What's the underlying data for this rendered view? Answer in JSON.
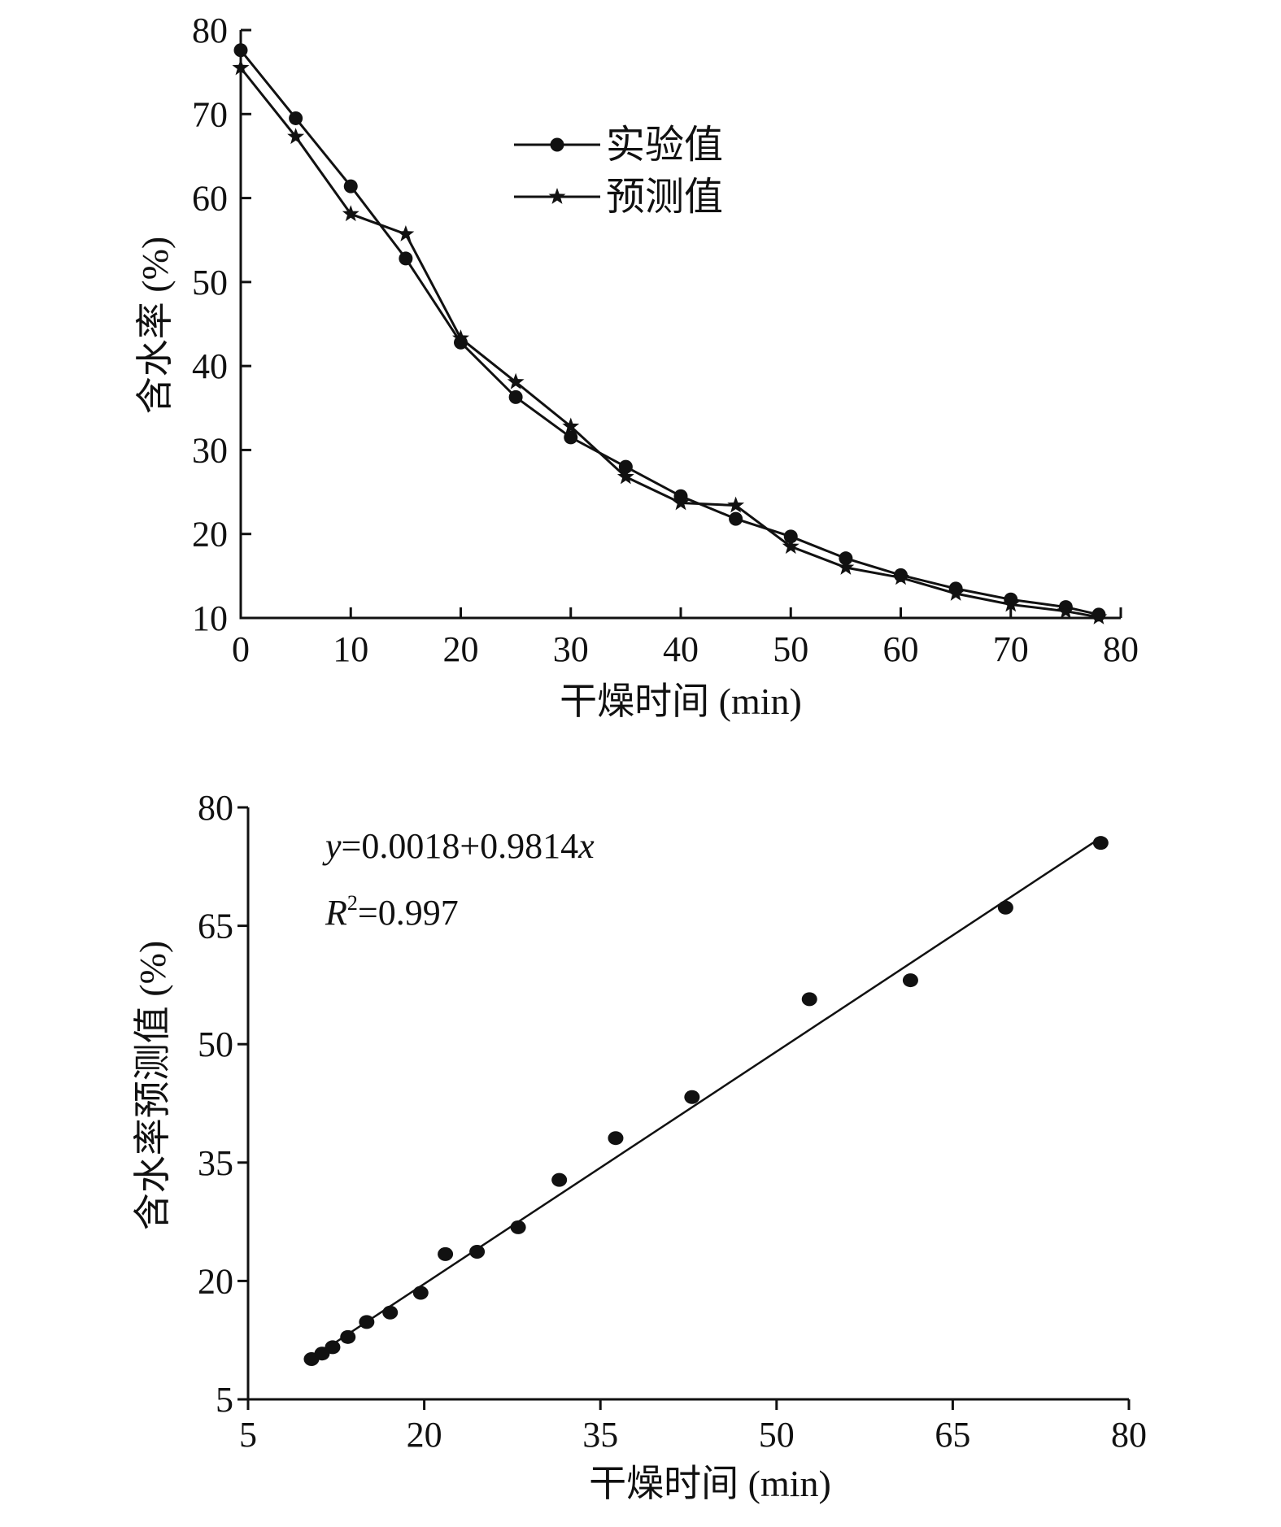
{
  "chart_data": [
    {
      "type": "line",
      "xlabel": "干燥时间 (min)",
      "ylabel": "含水率 (%)",
      "xlim": [
        0,
        80
      ],
      "ylim": [
        10,
        80
      ],
      "xticks": [
        "0",
        "10",
        "20",
        "30",
        "40",
        "50",
        "60",
        "70",
        "80"
      ],
      "yticks": [
        "10",
        "20",
        "30",
        "40",
        "50",
        "60",
        "70",
        "80"
      ],
      "legend_position": "top-center",
      "series": [
        {
          "name": "实验值",
          "marker": "circle",
          "x": [
            0,
            5,
            10,
            15,
            20,
            25,
            30,
            35,
            40,
            45,
            50,
            55,
            60,
            65,
            70,
            75,
            78
          ],
          "values": [
            77.6,
            69.5,
            61.4,
            52.8,
            42.8,
            36.3,
            31.5,
            28.0,
            24.5,
            21.8,
            19.7,
            17.1,
            15.1,
            13.5,
            12.2,
            11.3,
            10.4
          ]
        },
        {
          "name": "预测值",
          "marker": "star",
          "x": [
            0,
            5,
            10,
            15,
            20,
            25,
            30,
            35,
            40,
            45,
            50,
            55,
            60,
            65,
            70,
            75,
            78
          ],
          "values": [
            75.5,
            67.3,
            58.1,
            55.7,
            43.3,
            38.1,
            32.8,
            26.8,
            23.7,
            23.4,
            18.5,
            16.0,
            14.8,
            12.9,
            11.6,
            10.8,
            10.1
          ]
        }
      ]
    },
    {
      "type": "scatter",
      "xlabel": "干燥时间 (min)",
      "ylabel": "含水率预测值 (%)",
      "xlim": [
        5,
        80
      ],
      "ylim": [
        5,
        80
      ],
      "xticks": [
        "5",
        "20",
        "35",
        "50",
        "65",
        "80"
      ],
      "yticks": [
        "5",
        "20",
        "35",
        "50",
        "65",
        "80"
      ],
      "equation_y": "y",
      "equation_rest": "=0.0018+0.9814",
      "equation_x": "x",
      "r2_letter": "R",
      "r2_exp": "2",
      "r2_value": "=0.997",
      "fit": {
        "intercept": 0.0018,
        "slope": 0.9814,
        "x_range": [
          10.4,
          77.6
        ]
      },
      "points": {
        "x": [
          10.4,
          11.3,
          12.2,
          13.5,
          15.1,
          17.1,
          19.7,
          21.8,
          24.5,
          28.0,
          31.5,
          36.3,
          42.8,
          52.8,
          61.4,
          69.5,
          77.6
        ],
        "y": [
          10.1,
          10.8,
          11.6,
          12.9,
          14.8,
          16.0,
          18.5,
          23.4,
          23.7,
          26.8,
          32.8,
          38.1,
          43.3,
          55.7,
          58.1,
          67.3,
          75.5
        ]
      }
    }
  ]
}
